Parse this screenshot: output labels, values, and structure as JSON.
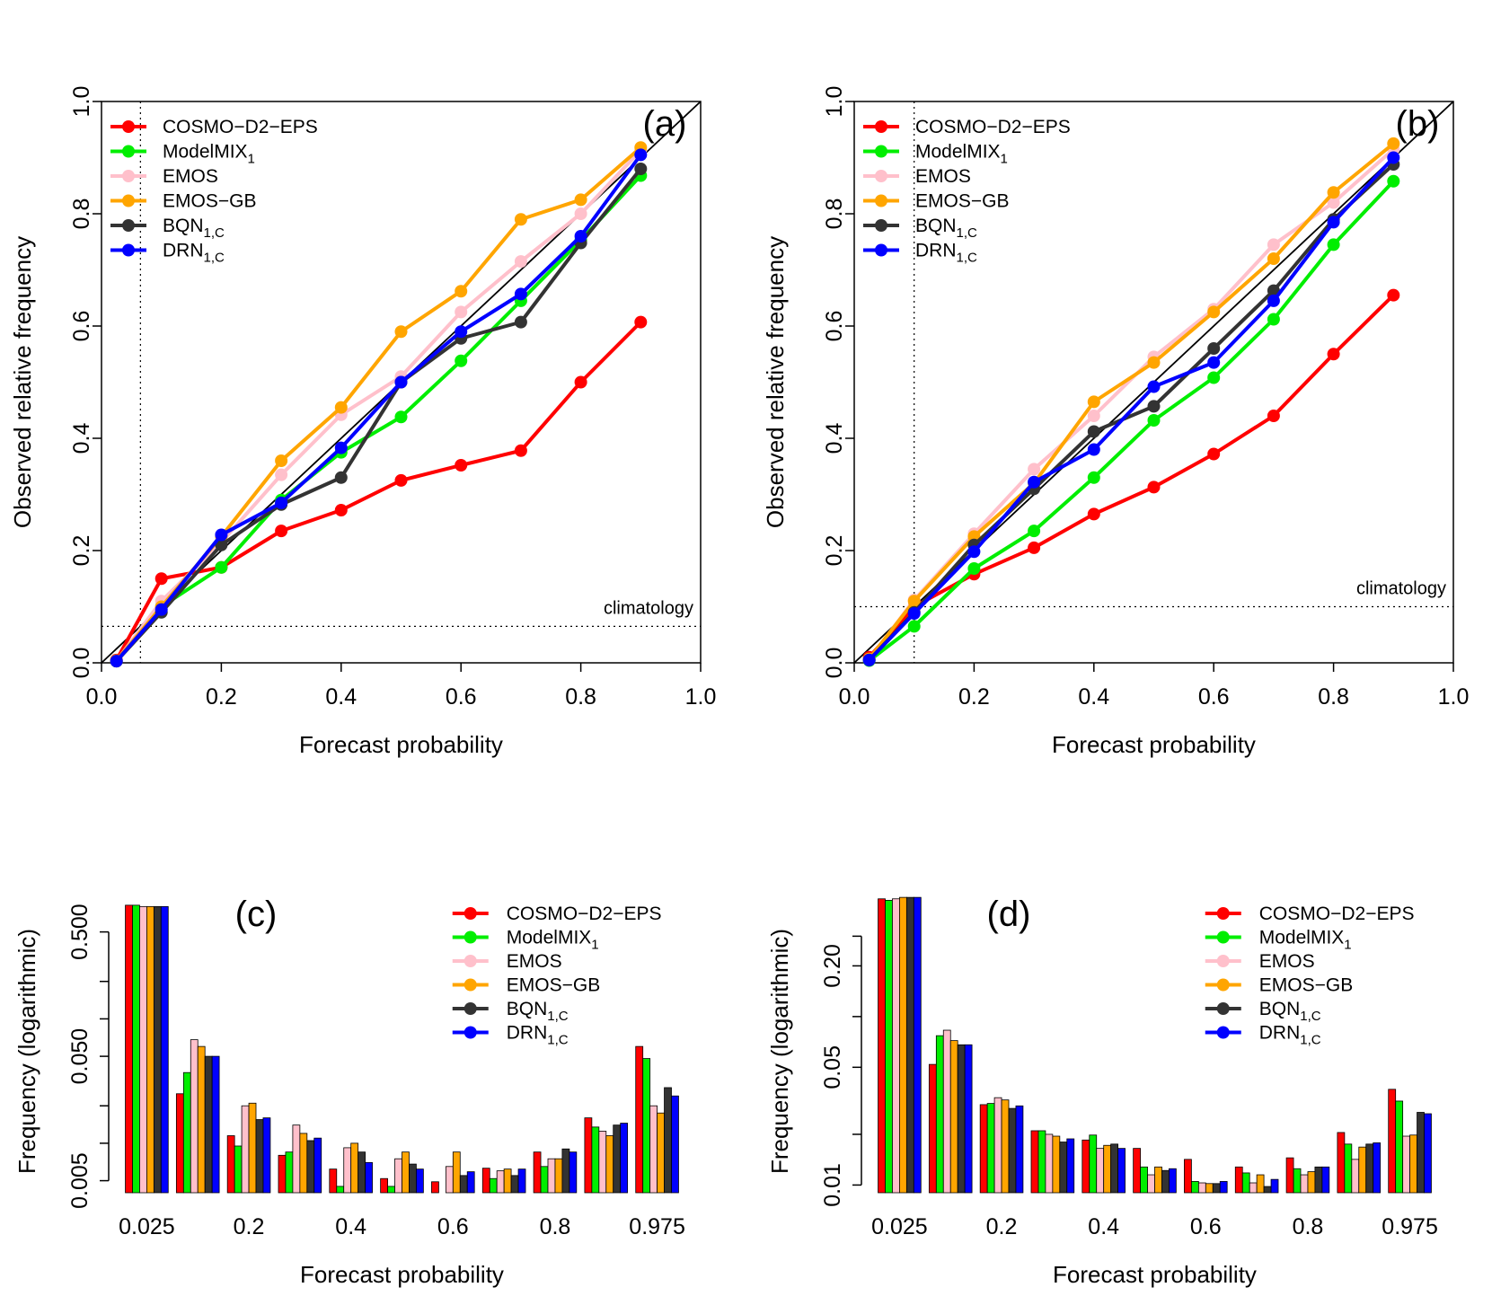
{
  "colors": {
    "COSMO-D2-EPS": "#ff0000",
    "ModelMIX1": "#00ee00",
    "EMOS": "#ffc0cb",
    "EMOS-GB": "#ffa500",
    "BQN1C": "#333333",
    "DRN1C": "#0000ff"
  },
  "legend": [
    {
      "key": "COSMO-D2-EPS",
      "base": "COSMO−D2−EPS",
      "sub": ""
    },
    {
      "key": "ModelMIX1",
      "base": "ModelMIX",
      "sub": "1"
    },
    {
      "key": "EMOS",
      "base": "EMOS",
      "sub": ""
    },
    {
      "key": "EMOS-GB",
      "base": "EMOS−GB",
      "sub": ""
    },
    {
      "key": "BQN1C",
      "base": "BQN",
      "sub": "1,C"
    },
    {
      "key": "DRN1C",
      "base": "DRN",
      "sub": "1,C"
    }
  ],
  "chart_data": [
    {
      "type": "line",
      "panel": "(a)",
      "xlabel": "Forecast probability",
      "ylabel": "Observed relative frequency",
      "xlim": [
        0,
        1
      ],
      "ylim": [
        0,
        1
      ],
      "xticks": [
        "0.0",
        "0.2",
        "0.4",
        "0.6",
        "0.8",
        "1.0"
      ],
      "yticks": [
        "0.0",
        "0.2",
        "0.4",
        "0.6",
        "0.8",
        "1.0"
      ],
      "climatology": 0.065,
      "climatology_label": "climatology",
      "diagonal": true,
      "x": [
        0.025,
        0.1,
        0.2,
        0.3,
        0.4,
        0.5,
        0.6,
        0.7,
        0.8,
        0.9
      ],
      "series": [
        {
          "key": "COSMO-D2-EPS",
          "values": [
            0.005,
            0.15,
            0.17,
            0.235,
            0.272,
            0.325,
            0.352,
            0.378,
            0.5,
            0.607
          ]
        },
        {
          "key": "ModelMIX1",
          "values": [
            0.003,
            0.1,
            0.17,
            0.29,
            0.375,
            0.438,
            0.538,
            0.645,
            0.753,
            0.868
          ]
        },
        {
          "key": "EMOS",
          "values": [
            0.003,
            0.11,
            0.215,
            0.335,
            0.442,
            0.51,
            0.625,
            0.715,
            0.8,
            0.913
          ]
        },
        {
          "key": "EMOS-GB",
          "values": [
            0.004,
            0.1,
            0.225,
            0.36,
            0.455,
            0.59,
            0.662,
            0.79,
            0.825,
            0.918
          ]
        },
        {
          "key": "BQN1C",
          "values": [
            0.003,
            0.09,
            0.21,
            0.282,
            0.33,
            0.5,
            0.578,
            0.607,
            0.748,
            0.88
          ]
        },
        {
          "key": "DRN1C",
          "values": [
            0.003,
            0.095,
            0.228,
            0.285,
            0.383,
            0.5,
            0.59,
            0.657,
            0.76,
            0.905
          ]
        }
      ]
    },
    {
      "type": "line",
      "panel": "(b)",
      "xlabel": "Forecast probability",
      "ylabel": "Observed relative frequency",
      "xlim": [
        0,
        1
      ],
      "ylim": [
        0,
        1
      ],
      "xticks": [
        "0.0",
        "0.2",
        "0.4",
        "0.6",
        "0.8",
        "1.0"
      ],
      "yticks": [
        "0.0",
        "0.2",
        "0.4",
        "0.6",
        "0.8",
        "1.0"
      ],
      "climatology": 0.1,
      "climatology_label": "climatology",
      "diagonal": true,
      "x": [
        0.025,
        0.1,
        0.2,
        0.3,
        0.4,
        0.5,
        0.6,
        0.7,
        0.8,
        0.9
      ],
      "series": [
        {
          "key": "COSMO-D2-EPS",
          "values": [
            0.01,
            0.1,
            0.158,
            0.205,
            0.265,
            0.313,
            0.372,
            0.44,
            0.55,
            0.655
          ]
        },
        {
          "key": "ModelMIX1",
          "values": [
            0.004,
            0.065,
            0.168,
            0.235,
            0.33,
            0.432,
            0.508,
            0.612,
            0.745,
            0.858
          ]
        },
        {
          "key": "EMOS",
          "values": [
            0.006,
            0.112,
            0.23,
            0.345,
            0.44,
            0.545,
            0.63,
            0.745,
            0.82,
            0.915
          ]
        },
        {
          "key": "EMOS-GB",
          "values": [
            0.007,
            0.11,
            0.225,
            0.32,
            0.465,
            0.535,
            0.625,
            0.72,
            0.838,
            0.925
          ]
        },
        {
          "key": "BQN1C",
          "values": [
            0.005,
            0.09,
            0.21,
            0.31,
            0.412,
            0.457,
            0.56,
            0.663,
            0.79,
            0.888
          ]
        },
        {
          "key": "DRN1C",
          "values": [
            0.005,
            0.088,
            0.198,
            0.322,
            0.38,
            0.492,
            0.535,
            0.645,
            0.785,
            0.9
          ]
        }
      ]
    },
    {
      "type": "bar",
      "panel": "(c)",
      "log": true,
      "xlabel": "Forecast probability",
      "ylabel": "Frequency (logarithmic)",
      "ylim": [
        0.004,
        1.05
      ],
      "yticks": [
        {
          "v": 0.005,
          "label": "0.005"
        },
        {
          "v": 0.05,
          "label": "0.050"
        },
        {
          "v": 0.5,
          "label": "0.500"
        }
      ],
      "yminor": [
        0.01,
        0.02,
        0.1,
        0.2
      ],
      "xtick_labels": [
        "0.025",
        "0.2",
        "0.4",
        "0.6",
        "0.8",
        "0.975"
      ],
      "xtick_groups": [
        0,
        2,
        4,
        6,
        8,
        10
      ],
      "groups": 11,
      "series": [
        {
          "key": "COSMO-D2-EPS",
          "values": [
            0.82,
            0.025,
            0.0115,
            0.008,
            0.0062,
            0.0052,
            0.0049,
            0.0063,
            0.0085,
            0.016,
            0.06
          ]
        },
        {
          "key": "ModelMIX1",
          "values": [
            0.82,
            0.037,
            0.0095,
            0.0085,
            0.0045,
            0.0045,
            0.0037,
            0.0052,
            0.0065,
            0.0135,
            0.048
          ]
        },
        {
          "key": "EMOS",
          "values": [
            0.8,
            0.068,
            0.02,
            0.014,
            0.0092,
            0.0075,
            0.0065,
            0.006,
            0.0075,
            0.0125,
            0.02
          ]
        },
        {
          "key": "EMOS-GB",
          "values": [
            0.8,
            0.06,
            0.021,
            0.012,
            0.01,
            0.0085,
            0.0085,
            0.0062,
            0.0075,
            0.0115,
            0.0175
          ]
        },
        {
          "key": "BQN1C",
          "values": [
            0.8,
            0.05,
            0.0155,
            0.0105,
            0.0085,
            0.0068,
            0.0055,
            0.0055,
            0.009,
            0.014,
            0.028
          ]
        },
        {
          "key": "DRN1C",
          "values": [
            0.8,
            0.05,
            0.016,
            0.011,
            0.007,
            0.0062,
            0.0059,
            0.0062,
            0.0085,
            0.0145,
            0.024
          ]
        }
      ]
    },
    {
      "type": "bar",
      "panel": "(d)",
      "log": true,
      "xlabel": "Forecast probability",
      "ylabel": "Frequency (logarithmic)",
      "ylim": [
        0.009,
        0.55
      ],
      "yticks": [
        {
          "v": 0.01,
          "label": "0.01"
        },
        {
          "v": 0.05,
          "label": "0.05"
        },
        {
          "v": 0.2,
          "label": "0.20"
        }
      ],
      "yminor": [
        0.02,
        0.1,
        0.3
      ],
      "xtick_labels": [
        "0.025",
        "0.2",
        "0.4",
        "0.6",
        "0.8",
        "0.975"
      ],
      "xtick_groups": [
        0,
        2,
        4,
        6,
        8,
        10
      ],
      "groups": 11,
      "series": [
        {
          "key": "COSMO-D2-EPS",
          "values": [
            0.5,
            0.052,
            0.03,
            0.021,
            0.0185,
            0.0165,
            0.0142,
            0.0128,
            0.0145,
            0.0205,
            0.037
          ]
        },
        {
          "key": "ModelMIX1",
          "values": [
            0.49,
            0.077,
            0.0305,
            0.021,
            0.0198,
            0.0128,
            0.0105,
            0.0118,
            0.0125,
            0.0175,
            0.0315
          ]
        },
        {
          "key": "EMOS",
          "values": [
            0.5,
            0.083,
            0.033,
            0.02,
            0.0165,
            0.0115,
            0.0103,
            0.0103,
            0.0115,
            0.0142,
            0.0195
          ]
        },
        {
          "key": "EMOS-GB",
          "values": [
            0.51,
            0.072,
            0.032,
            0.0195,
            0.0172,
            0.0128,
            0.0102,
            0.0115,
            0.012,
            0.0168,
            0.0198
          ]
        },
        {
          "key": "BQN1C",
          "values": [
            0.51,
            0.068,
            0.0285,
            0.018,
            0.0175,
            0.0122,
            0.0102,
            0.0098,
            0.0128,
            0.0175,
            0.027
          ]
        },
        {
          "key": "DRN1C",
          "values": [
            0.51,
            0.068,
            0.0295,
            0.0188,
            0.0165,
            0.0125,
            0.0105,
            0.0108,
            0.0128,
            0.0178,
            0.0265
          ]
        }
      ]
    }
  ]
}
